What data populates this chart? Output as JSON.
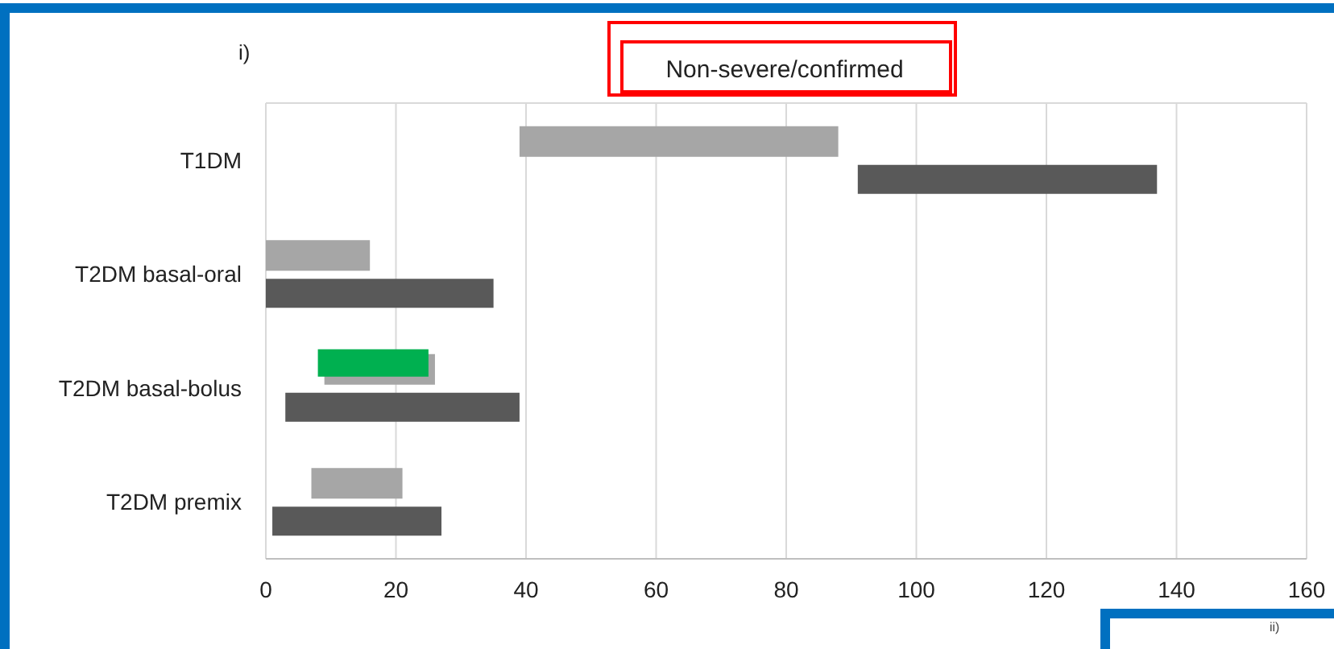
{
  "chart_data": {
    "type": "bar",
    "orientation": "horizontal",
    "title": "Non-severe/confirmed",
    "categories": [
      "T1DM",
      "T2DM basal-oral",
      "T2DM basal-bolus",
      "T2DM premix"
    ],
    "series": [
      {
        "color": "#a6a6a6",
        "base": [
          39,
          0,
          9,
          7
        ],
        "values": [
          49,
          16,
          17,
          14
        ]
      },
      {
        "color": "#595959",
        "base": [
          91,
          0,
          3,
          1
        ],
        "values": [
          46,
          35,
          36,
          26
        ]
      },
      {
        "color": "#00b050",
        "base": [
          null,
          null,
          8,
          null
        ],
        "values": [
          null,
          null,
          17,
          null
        ]
      }
    ],
    "xlim": [
      0,
      160
    ],
    "xticks": [
      0,
      20,
      40,
      60,
      80,
      100,
      120,
      140,
      160
    ],
    "grid": "x",
    "annotations": [
      "i)",
      "ii)"
    ]
  }
}
